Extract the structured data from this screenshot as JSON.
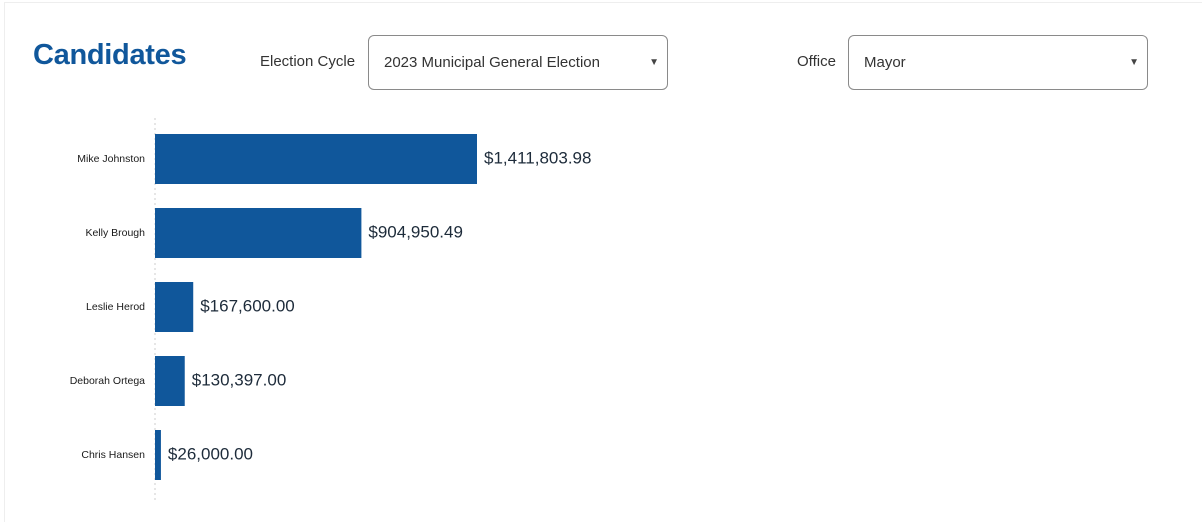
{
  "header": {
    "title": "Candidates"
  },
  "filters": {
    "election_cycle": {
      "label": "Election Cycle",
      "selected": "2023 Municipal General Election"
    },
    "office": {
      "label": "Office",
      "selected": "Mayor"
    }
  },
  "icons": {
    "dropdown": "chevron-down-icon"
  },
  "colors": {
    "bar": "#10579b",
    "title": "#10579b"
  },
  "chart_data": {
    "type": "bar",
    "orientation": "horizontal",
    "title": "",
    "xlabel": "",
    "ylabel": "",
    "categories": [
      "Mike Johnston",
      "Kelly Brough",
      "Leslie Herod",
      "Deborah Ortega",
      "Chris Hansen"
    ],
    "values": [
      1411803.98,
      904950.49,
      167600.0,
      130397.0,
      26000.0
    ],
    "value_labels": [
      "$1,411,803.98",
      "$904,950.49",
      "$167,600.00",
      "$130,397.00",
      "$26,000.00"
    ],
    "xlim": [
      0,
      1411803.98
    ],
    "grid": false,
    "legend": "none"
  }
}
